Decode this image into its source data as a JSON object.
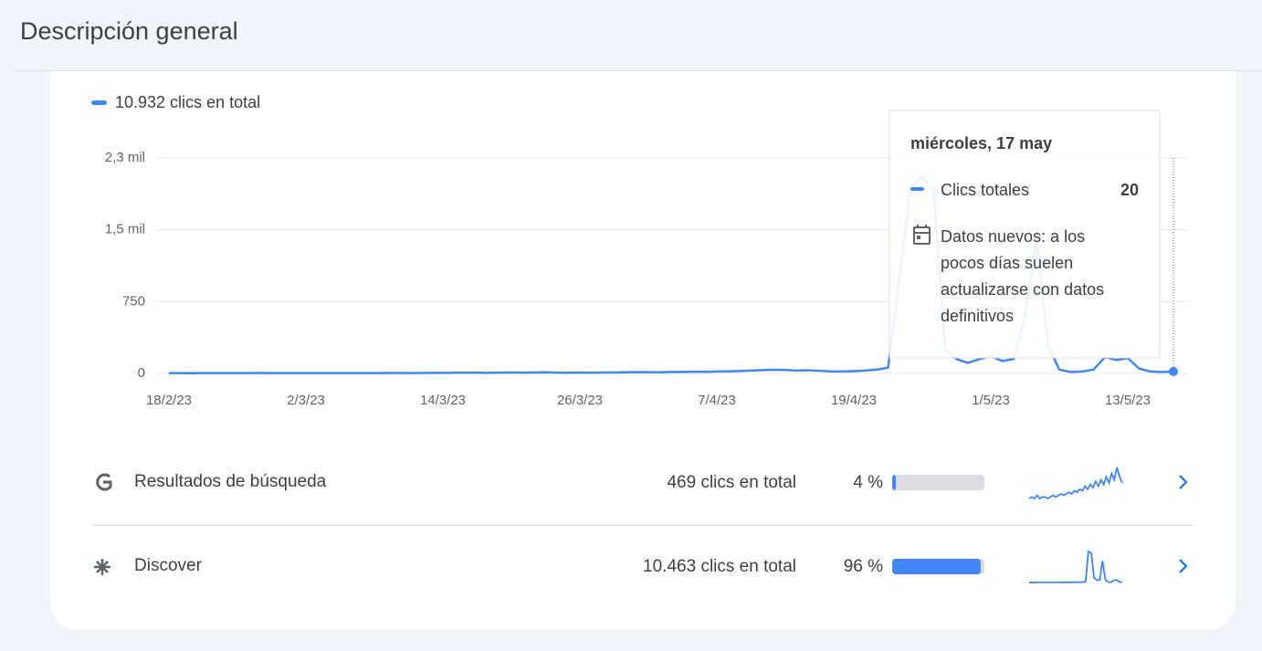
{
  "header": {
    "title": "Descripción general"
  },
  "chart_data": {
    "type": "line",
    "series": [
      {
        "name": "10.932 clics en total",
        "color": "#4285f4",
        "values": [
          2,
          3,
          2,
          3,
          4,
          3,
          3,
          4,
          5,
          4,
          3,
          4,
          4,
          3,
          4,
          3,
          3,
          4,
          4,
          5,
          5,
          4,
          5,
          6,
          6,
          7,
          8,
          7,
          6,
          8,
          9,
          8,
          10,
          12,
          8,
          7,
          8,
          7,
          9,
          10,
          12,
          14,
          13,
          12,
          15,
          16,
          18,
          17,
          20,
          22,
          25,
          30,
          35,
          38,
          36,
          30,
          33,
          28,
          22,
          20,
          24,
          30,
          40,
          60,
          1000,
          1950,
          2050,
          1900,
          250,
          150,
          110,
          150,
          180,
          130,
          150,
          600,
          1400,
          300,
          40,
          15,
          20,
          40,
          170,
          140,
          160,
          50,
          20,
          15,
          20
        ]
      }
    ],
    "categories": [
      "18/2/23",
      null,
      null,
      null,
      null,
      null,
      null,
      null,
      null,
      null,
      null,
      null,
      "2/3/23",
      null,
      null,
      null,
      null,
      null,
      null,
      null,
      null,
      null,
      null,
      null,
      "14/3/23",
      null,
      null,
      null,
      null,
      null,
      null,
      null,
      null,
      null,
      null,
      null,
      "26/3/23",
      null,
      null,
      null,
      null,
      null,
      null,
      null,
      null,
      null,
      null,
      null,
      "7/4/23",
      null,
      null,
      null,
      null,
      null,
      null,
      null,
      null,
      null,
      null,
      null,
      "19/4/23",
      null,
      null,
      null,
      null,
      null,
      null,
      null,
      null,
      null,
      null,
      null,
      "1/5/23",
      null,
      null,
      null,
      null,
      null,
      null,
      null,
      null,
      null,
      null,
      null,
      "13/5/23",
      null,
      null,
      null,
      null
    ],
    "ylim": [
      0,
      2250
    ],
    "yticks": [
      0,
      750,
      {
        "value": 1500,
        "label": "1,5 mil"
      },
      {
        "value": 2250,
        "label": "2,3 mil"
      }
    ],
    "grid": true,
    "tooltip": {
      "date": "miércoles, 17 may",
      "label": "Clics totales",
      "note": [
        "Datos nuevos: a los",
        "pocos días suelen",
        "actualizarse con datos",
        "definitivos"
      ]
    }
  },
  "rows": [
    {
      "name": "Resultados de búsqueda",
      "total": "469 clics en total",
      "percent": 4,
      "percent_label": "4 %",
      "sparkline": [
        0,
        1,
        0,
        2,
        0,
        1,
        1,
        0,
        1,
        2,
        1,
        2,
        3,
        2,
        3,
        4,
        3,
        5,
        4,
        6,
        5,
        8,
        6,
        9,
        7,
        11,
        8,
        12,
        9,
        14,
        10,
        16,
        12,
        20,
        14,
        10
      ]
    },
    {
      "name": "Discover",
      "total": "10.463 clics en total",
      "percent": 96,
      "percent_label": "96 %",
      "sparkline": [
        5,
        5,
        5,
        6,
        6,
        6,
        6,
        7,
        7,
        8,
        8,
        9,
        10,
        10,
        12,
        14,
        16,
        18,
        20,
        25,
        40,
        2000,
        1900,
        300,
        150,
        160,
        1400,
        200,
        30,
        20,
        150,
        160,
        40,
        20
      ]
    }
  ]
}
